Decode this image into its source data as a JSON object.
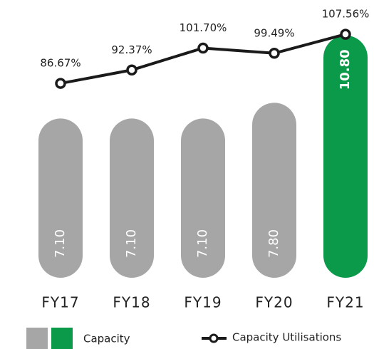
{
  "chart_data": {
    "type": "bar",
    "categories": [
      "FY17",
      "FY18",
      "FY19",
      "FY20",
      "FY21"
    ],
    "series": [
      {
        "name": "Capacity",
        "colors": [
          "#a6a6a6",
          "#a6a6a6",
          "#a6a6a6",
          "#a6a6a6",
          "#0b9a4a"
        ],
        "values": [
          7.1,
          7.1,
          7.1,
          7.8,
          10.8
        ],
        "value_labels": [
          "7.10",
          "7.10",
          "7.10",
          "7.80",
          "10.80"
        ]
      },
      {
        "name": "Capacity Utilisations",
        "type": "line",
        "axis": "y2",
        "color": "#1a1a1a",
        "values": [
          86.67,
          92.37,
          101.7,
          99.49,
          107.56
        ],
        "value_labels": [
          "86.67%",
          "92.37%",
          "101.70%",
          "99.49%",
          "107.56%"
        ]
      }
    ],
    "ylim": [
      0,
      12
    ],
    "y2lim": [
      4,
      118.5
    ]
  }
}
